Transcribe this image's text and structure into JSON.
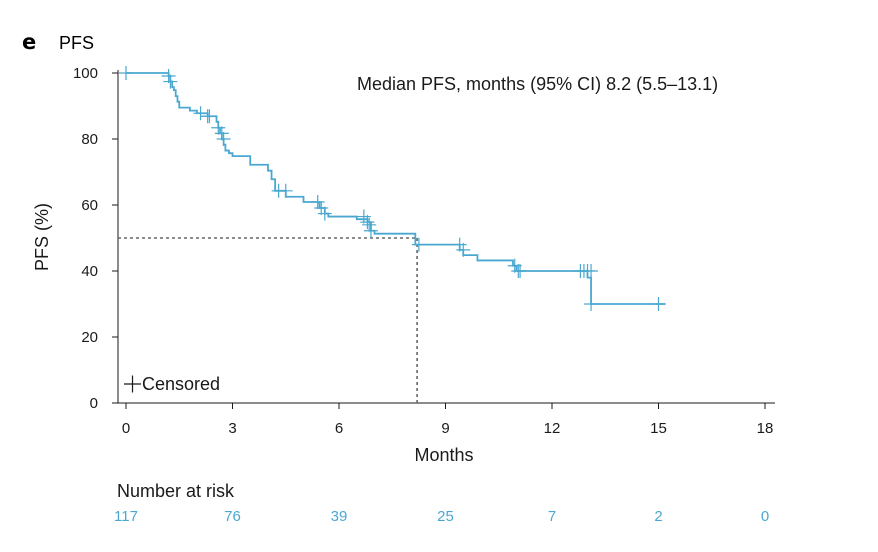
{
  "panel_label": "e",
  "chart_data": {
    "type": "line",
    "subtype": "kaplan-meier",
    "title": "PFS",
    "xlabel": "Months",
    "ylabel": "PFS (%)",
    "xlim": [
      0,
      18
    ],
    "ylim": [
      0,
      100
    ],
    "xticks": [
      0,
      3,
      6,
      9,
      12,
      15,
      18
    ],
    "yticks": [
      0,
      20,
      40,
      60,
      80,
      100
    ],
    "annotation": "Median PFS, months (95% CI) 8.2 (5.5–13.1)",
    "median": 8.2,
    "median_level": 50,
    "legend": [
      {
        "symbol": "+",
        "label": "Censored"
      }
    ],
    "series": [
      {
        "name": "PFS",
        "color": "#4aa8d0",
        "steps": [
          [
            0,
            100
          ],
          [
            0.6,
            100
          ],
          [
            1.2,
            99.1
          ],
          [
            1.25,
            97.4
          ],
          [
            1.3,
            95.7
          ],
          [
            1.35,
            94.8
          ],
          [
            1.4,
            93.0
          ],
          [
            1.45,
            91.3
          ],
          [
            1.5,
            89.5
          ],
          [
            1.8,
            88.6
          ],
          [
            2.0,
            87.8
          ],
          [
            2.3,
            86.9
          ],
          [
            2.55,
            85.2
          ],
          [
            2.6,
            83.4
          ],
          [
            2.65,
            81.7
          ],
          [
            2.7,
            80.0
          ],
          [
            2.75,
            78.3
          ],
          [
            2.8,
            76.5
          ],
          [
            2.9,
            75.7
          ],
          [
            3.0,
            74.8
          ],
          [
            3.5,
            72.2
          ],
          [
            4.0,
            70.4
          ],
          [
            4.1,
            67.8
          ],
          [
            4.2,
            64.3
          ],
          [
            4.5,
            62.5
          ],
          [
            5.0,
            60.9
          ],
          [
            5.45,
            59.1
          ],
          [
            5.6,
            57.4
          ],
          [
            5.7,
            56.5
          ],
          [
            6.5,
            55.7
          ],
          [
            6.8,
            54.8
          ],
          [
            6.9,
            52.2
          ],
          [
            7.0,
            51.3
          ],
          [
            8.15,
            48.0
          ],
          [
            9.4,
            46.4
          ],
          [
            9.5,
            44.8
          ],
          [
            9.9,
            43.2
          ],
          [
            10.9,
            41.6
          ],
          [
            11.0,
            40.0
          ],
          [
            13.0,
            38.0
          ],
          [
            13.1,
            30.0
          ],
          [
            15.2,
            30.0
          ]
        ],
        "censored": [
          [
            0,
            100
          ],
          [
            1.2,
            99.1
          ],
          [
            1.25,
            97.4
          ],
          [
            2.1,
            87.8
          ],
          [
            2.3,
            86.9
          ],
          [
            2.35,
            86.9
          ],
          [
            2.6,
            83.4
          ],
          [
            2.7,
            81.7
          ],
          [
            2.75,
            80.0
          ],
          [
            4.3,
            64.3
          ],
          [
            4.5,
            64.3
          ],
          [
            5.4,
            60.9
          ],
          [
            5.5,
            59.1
          ],
          [
            5.6,
            57.4
          ],
          [
            6.7,
            56.5
          ],
          [
            6.8,
            54.8
          ],
          [
            6.85,
            54.0
          ],
          [
            6.9,
            52.2
          ],
          [
            8.25,
            48.0
          ],
          [
            9.4,
            48.0
          ],
          [
            9.5,
            46.4
          ],
          [
            10.95,
            41.6
          ],
          [
            11.05,
            40.0
          ],
          [
            11.1,
            40.0
          ],
          [
            12.8,
            40.0
          ],
          [
            12.9,
            40.0
          ],
          [
            13.0,
            40.0
          ],
          [
            13.1,
            40.0
          ],
          [
            13.1,
            30.0
          ],
          [
            15.0,
            30.0
          ]
        ]
      }
    ],
    "number_at_risk": {
      "title": "Number at risk",
      "times": [
        0,
        3,
        6,
        9,
        12,
        15,
        18
      ],
      "values": [
        "117",
        "76",
        "39",
        "25",
        "7",
        "2",
        "0"
      ]
    }
  }
}
